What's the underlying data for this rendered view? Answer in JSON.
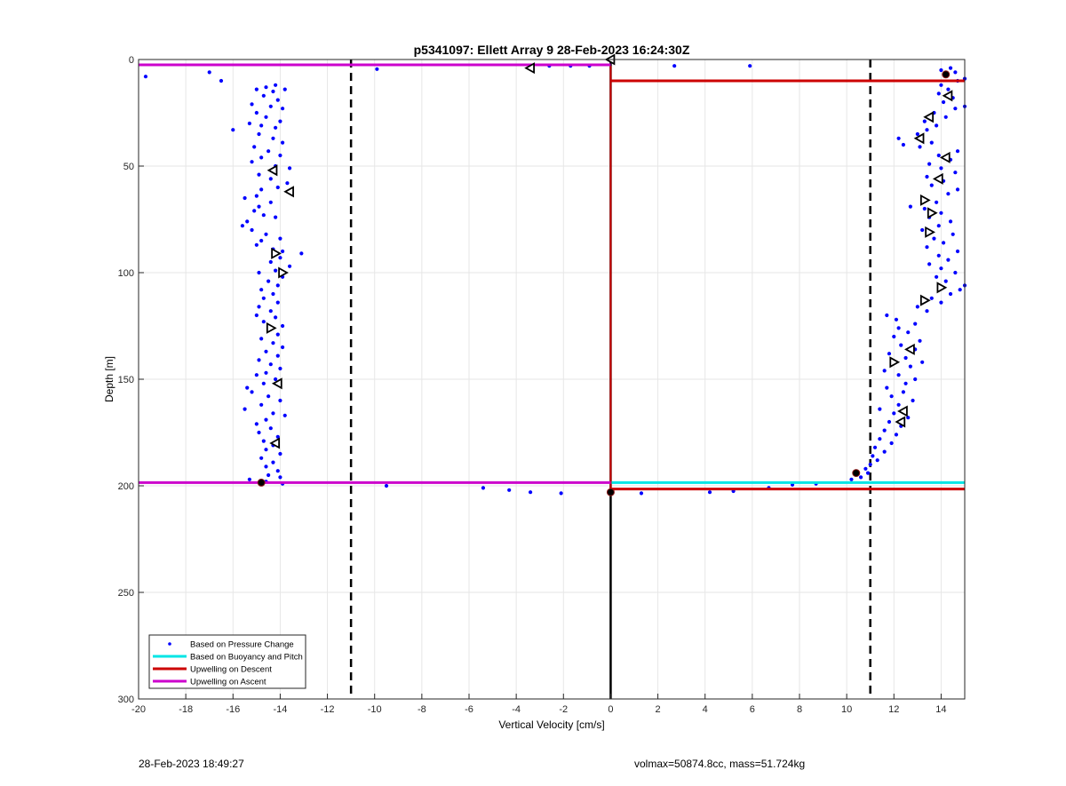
{
  "chart_data": {
    "type": "scatter",
    "title": "p5341097: Ellett Array 9 28-Feb-2023 16:24:30Z",
    "xlabel": "Vertical Velocity [cm/s]",
    "ylabel": "Depth [m]",
    "xlim": [
      -20,
      15
    ],
    "ylim": [
      0,
      300
    ],
    "y_reversed": true,
    "grid": true,
    "xticks": [
      -20,
      -18,
      -16,
      -14,
      -12,
      -10,
      -8,
      -6,
      -4,
      -2,
      0,
      2,
      4,
      6,
      8,
      10,
      12,
      14
    ],
    "yticks": [
      0,
      50,
      100,
      150,
      200,
      250,
      300
    ],
    "legend_position": "bottom-left",
    "legend": [
      {
        "label": "Based on Pressure Change",
        "color": "#0000ff",
        "marker": "dot"
      },
      {
        "label": "Based on Buoyancy and Pitch",
        "color": "#00e5e5",
        "marker": "line"
      },
      {
        "label": "Upwelling on Descent",
        "color": "#cc0000",
        "marker": "line"
      },
      {
        "label": "Upwelling on Ascent",
        "color": "#cc00cc",
        "marker": "line"
      }
    ],
    "reference_lines": {
      "dashed_x": [
        -11,
        11
      ],
      "solid_x": [
        0
      ]
    },
    "series": [
      {
        "name": "Based on Pressure Change",
        "color": "#0000ff",
        "points": [
          [
            -19.7,
            8
          ],
          [
            -17,
            6
          ],
          [
            -16.5,
            10
          ],
          [
            -14.2,
            12
          ],
          [
            -14.6,
            13
          ],
          [
            -14.3,
            15
          ],
          [
            -15,
            14
          ],
          [
            -13.8,
            14
          ],
          [
            -14.7,
            17
          ],
          [
            -14.1,
            19
          ],
          [
            -15.2,
            21
          ],
          [
            -14.4,
            22
          ],
          [
            -13.9,
            23
          ],
          [
            -15.0,
            25
          ],
          [
            -14.6,
            27
          ],
          [
            -14.0,
            29
          ],
          [
            -15.3,
            30
          ],
          [
            -14.8,
            31
          ],
          [
            -14.2,
            32
          ],
          [
            -16,
            33
          ],
          [
            -14.9,
            35
          ],
          [
            -14.3,
            37
          ],
          [
            -13.9,
            39
          ],
          [
            -15.1,
            41
          ],
          [
            -14.5,
            43
          ],
          [
            -14.0,
            45
          ],
          [
            -14.8,
            46
          ],
          [
            -15.2,
            48
          ],
          [
            -14.2,
            50
          ],
          [
            -13.6,
            51
          ],
          [
            -14.9,
            54
          ],
          [
            -14.4,
            56
          ],
          [
            -13.7,
            58
          ],
          [
            -14.1,
            60
          ],
          [
            -14.8,
            61
          ],
          [
            -15.0,
            64
          ],
          [
            -15.5,
            65
          ],
          [
            -14.4,
            67
          ],
          [
            -14.9,
            69
          ],
          [
            -15.1,
            71
          ],
          [
            -14.7,
            73
          ],
          [
            -14.2,
            74
          ],
          [
            -15.4,
            76
          ],
          [
            -15.6,
            78
          ],
          [
            -15.2,
            80
          ],
          [
            -14.6,
            82
          ],
          [
            -14.0,
            84
          ],
          [
            -14.8,
            85
          ],
          [
            -15.0,
            87
          ],
          [
            -14.3,
            89
          ],
          [
            -13.9,
            90
          ],
          [
            -13.1,
            91
          ],
          [
            -14.0,
            93
          ],
          [
            -14.4,
            95
          ],
          [
            -13.6,
            97
          ],
          [
            -14.2,
            99
          ],
          [
            -14.9,
            100
          ],
          [
            -13.9,
            102
          ],
          [
            -14.5,
            104
          ],
          [
            -14.1,
            106
          ],
          [
            -14.8,
            108
          ],
          [
            -14.3,
            110
          ],
          [
            -14.7,
            112
          ],
          [
            -14.1,
            114
          ],
          [
            -14.9,
            116
          ],
          [
            -14.4,
            118
          ],
          [
            -15.0,
            120
          ],
          [
            -14.2,
            121
          ],
          [
            -14.7,
            123
          ],
          [
            -13.9,
            125
          ],
          [
            -14.5,
            127
          ],
          [
            -14.1,
            129
          ],
          [
            -14.8,
            131
          ],
          [
            -14.3,
            133
          ],
          [
            -13.9,
            135
          ],
          [
            -14.6,
            137
          ],
          [
            -14.1,
            139
          ],
          [
            -14.9,
            141
          ],
          [
            -14.4,
            143
          ],
          [
            -14.0,
            145
          ],
          [
            -14.6,
            147
          ],
          [
            -15.0,
            148
          ],
          [
            -14.2,
            150
          ],
          [
            -14.7,
            152
          ],
          [
            -15.4,
            154
          ],
          [
            -15.2,
            156
          ],
          [
            -14.5,
            158
          ],
          [
            -14.0,
            160
          ],
          [
            -14.8,
            162
          ],
          [
            -15.5,
            164
          ],
          [
            -14.3,
            166
          ],
          [
            -13.8,
            167
          ],
          [
            -14.6,
            169
          ],
          [
            -15.0,
            171
          ],
          [
            -14.4,
            173
          ],
          [
            -14.9,
            175
          ],
          [
            -14.1,
            177
          ],
          [
            -14.7,
            179
          ],
          [
            -14.3,
            181
          ],
          [
            -14.6,
            183
          ],
          [
            -14.0,
            185
          ],
          [
            -14.8,
            187
          ],
          [
            -14.3,
            189
          ],
          [
            -14.6,
            191
          ],
          [
            -14.1,
            193
          ],
          [
            -14.5,
            195
          ],
          [
            -14.0,
            196
          ],
          [
            -15.3,
            197
          ],
          [
            -14.6,
            198
          ],
          [
            -13.9,
            199
          ],
          [
            -9.5,
            200
          ],
          [
            -5.4,
            201
          ],
          [
            -4.3,
            202
          ],
          [
            -3.4,
            203
          ],
          [
            -2.1,
            203.5
          ],
          [
            1.3,
            203.5
          ],
          [
            4.2,
            203
          ],
          [
            5.2,
            202.5
          ],
          [
            6.7,
            201
          ],
          [
            7.7,
            199.5
          ],
          [
            8.7,
            199
          ],
          [
            10.2,
            197
          ],
          [
            10.6,
            196
          ],
          [
            10.9,
            194
          ],
          [
            10.8,
            192
          ],
          [
            11.0,
            190
          ],
          [
            11.3,
            188
          ],
          [
            11.1,
            186
          ],
          [
            11.6,
            184
          ],
          [
            11.2,
            182
          ],
          [
            11.9,
            180
          ],
          [
            11.4,
            178
          ],
          [
            12.1,
            176
          ],
          [
            11.6,
            174
          ],
          [
            12.3,
            172
          ],
          [
            11.8,
            170
          ],
          [
            12.6,
            168
          ],
          [
            12.0,
            166
          ],
          [
            11.4,
            164
          ],
          [
            12.2,
            162
          ],
          [
            12.8,
            160
          ],
          [
            11.9,
            158
          ],
          [
            12.4,
            156
          ],
          [
            11.7,
            154
          ],
          [
            12.5,
            152
          ],
          [
            12.9,
            150
          ],
          [
            12.2,
            148
          ],
          [
            11.6,
            146
          ],
          [
            12.7,
            144
          ],
          [
            13.2,
            142
          ],
          [
            12.5,
            140
          ],
          [
            11.8,
            138
          ],
          [
            12.9,
            136
          ],
          [
            12.3,
            134
          ],
          [
            13.1,
            132
          ],
          [
            12.0,
            130
          ],
          [
            12.6,
            128
          ],
          [
            12.2,
            126
          ],
          [
            12.9,
            124
          ],
          [
            12.1,
            122
          ],
          [
            11.7,
            120
          ],
          [
            13.4,
            118
          ],
          [
            13.0,
            116
          ],
          [
            14.0,
            114
          ],
          [
            13.6,
            112
          ],
          [
            14.4,
            110
          ],
          [
            14.8,
            108
          ],
          [
            15.0,
            106
          ],
          [
            14.2,
            104
          ],
          [
            13.8,
            102
          ],
          [
            14.6,
            100
          ],
          [
            14.0,
            98
          ],
          [
            13.5,
            96
          ],
          [
            14.3,
            94
          ],
          [
            13.9,
            92
          ],
          [
            14.7,
            90
          ],
          [
            13.4,
            88
          ],
          [
            14.1,
            86
          ],
          [
            13.7,
            84
          ],
          [
            14.5,
            82
          ],
          [
            13.2,
            80
          ],
          [
            13.9,
            78
          ],
          [
            14.4,
            76
          ],
          [
            13.5,
            74
          ],
          [
            14.0,
            72
          ],
          [
            13.3,
            70
          ],
          [
            12.7,
            69
          ],
          [
            13.8,
            67
          ],
          [
            13.2,
            65
          ],
          [
            14.3,
            63
          ],
          [
            14.7,
            61
          ],
          [
            13.6,
            59
          ],
          [
            14.1,
            57
          ],
          [
            13.4,
            55
          ],
          [
            14.6,
            53
          ],
          [
            14.0,
            51
          ],
          [
            13.5,
            49
          ],
          [
            14.4,
            47
          ],
          [
            13.9,
            45
          ],
          [
            14.7,
            43
          ],
          [
            13.1,
            41
          ],
          [
            12.4,
            40
          ],
          [
            13.6,
            39
          ],
          [
            12.2,
            37
          ],
          [
            13.0,
            35
          ],
          [
            13.4,
            33
          ],
          [
            13.8,
            31
          ],
          [
            13.3,
            29
          ],
          [
            14.2,
            27
          ],
          [
            13.7,
            25
          ],
          [
            14.6,
            23
          ],
          [
            15.0,
            22
          ],
          [
            14.1,
            20
          ],
          [
            14.5,
            18
          ],
          [
            13.9,
            16
          ],
          [
            14.3,
            14
          ],
          [
            14.0,
            12
          ],
          [
            14.7,
            10
          ],
          [
            15.0,
            9
          ],
          [
            14.2,
            7
          ],
          [
            14.6,
            6
          ],
          [
            14.0,
            5
          ],
          [
            14.4,
            4
          ],
          [
            5.9,
            3
          ],
          [
            2.7,
            3
          ],
          [
            -0.9,
            3
          ],
          [
            -1.7,
            3
          ],
          [
            -2.6,
            3
          ],
          [
            -3.4,
            4
          ],
          [
            -9.9,
            4.5
          ]
        ]
      },
      {
        "name": "Based on Buoyancy and Pitch",
        "color": "#00e5e5",
        "segments": [
          [
            [
              0,
              198.5
            ],
            [
              15,
              198.5
            ]
          ]
        ]
      },
      {
        "name": "Upwelling on Descent",
        "color": "#cc0000",
        "segments": [
          [
            [
              0,
              10
            ],
            [
              15,
              10
            ]
          ],
          [
            [
              0,
              201.5
            ],
            [
              15,
              201.5
            ]
          ]
        ],
        "profile": [
          [
            0,
            3
          ],
          [
            0,
            6
          ],
          [
            0,
            10
          ],
          [
            0,
            198
          ],
          [
            0,
            201.5
          ]
        ]
      },
      {
        "name": "Upwelling on Ascent",
        "color": "#cc00cc",
        "segments": [
          [
            [
              -20,
              2.5
            ],
            [
              0,
              2.5
            ]
          ],
          [
            [
              -20,
              198.5
            ],
            [
              0,
              198.5
            ]
          ]
        ]
      },
      {
        "name": "",
        "color": "#000000",
        "markers": [
          [
            -3.4,
            4,
            "left"
          ],
          [
            0,
            0,
            "left"
          ],
          [
            -14.3,
            52,
            "left"
          ],
          [
            -13.6,
            62,
            "left"
          ],
          [
            -14.2,
            91,
            "right"
          ],
          [
            -13.9,
            100,
            "right"
          ],
          [
            -14.4,
            126,
            "right"
          ],
          [
            -14.1,
            152,
            "left"
          ],
          [
            -14.2,
            180,
            "left"
          ],
          [
            -14.8,
            198.5,
            "dot"
          ],
          [
            0,
            203,
            "dot"
          ],
          [
            10.4,
            194,
            "dot"
          ],
          [
            14.2,
            7,
            "dot"
          ],
          [
            14.3,
            17,
            "left"
          ],
          [
            13.5,
            27,
            "left"
          ],
          [
            13.1,
            37,
            "left"
          ],
          [
            14.2,
            46,
            "left"
          ],
          [
            13.9,
            56,
            "left"
          ],
          [
            13.3,
            66,
            "right"
          ],
          [
            13.6,
            72,
            "right"
          ],
          [
            13.5,
            81,
            "right"
          ],
          [
            14.0,
            107,
            "right"
          ],
          [
            13.3,
            113,
            "right"
          ],
          [
            12.7,
            136,
            "left"
          ],
          [
            12.0,
            142,
            "right"
          ],
          [
            12.4,
            165,
            "left"
          ],
          [
            12.3,
            170,
            "left"
          ]
        ]
      }
    ]
  },
  "footer": {
    "timestamp": "28-Feb-2023 18:49:27",
    "summary": "volmax=50874.8cc, mass=51.724kg"
  }
}
